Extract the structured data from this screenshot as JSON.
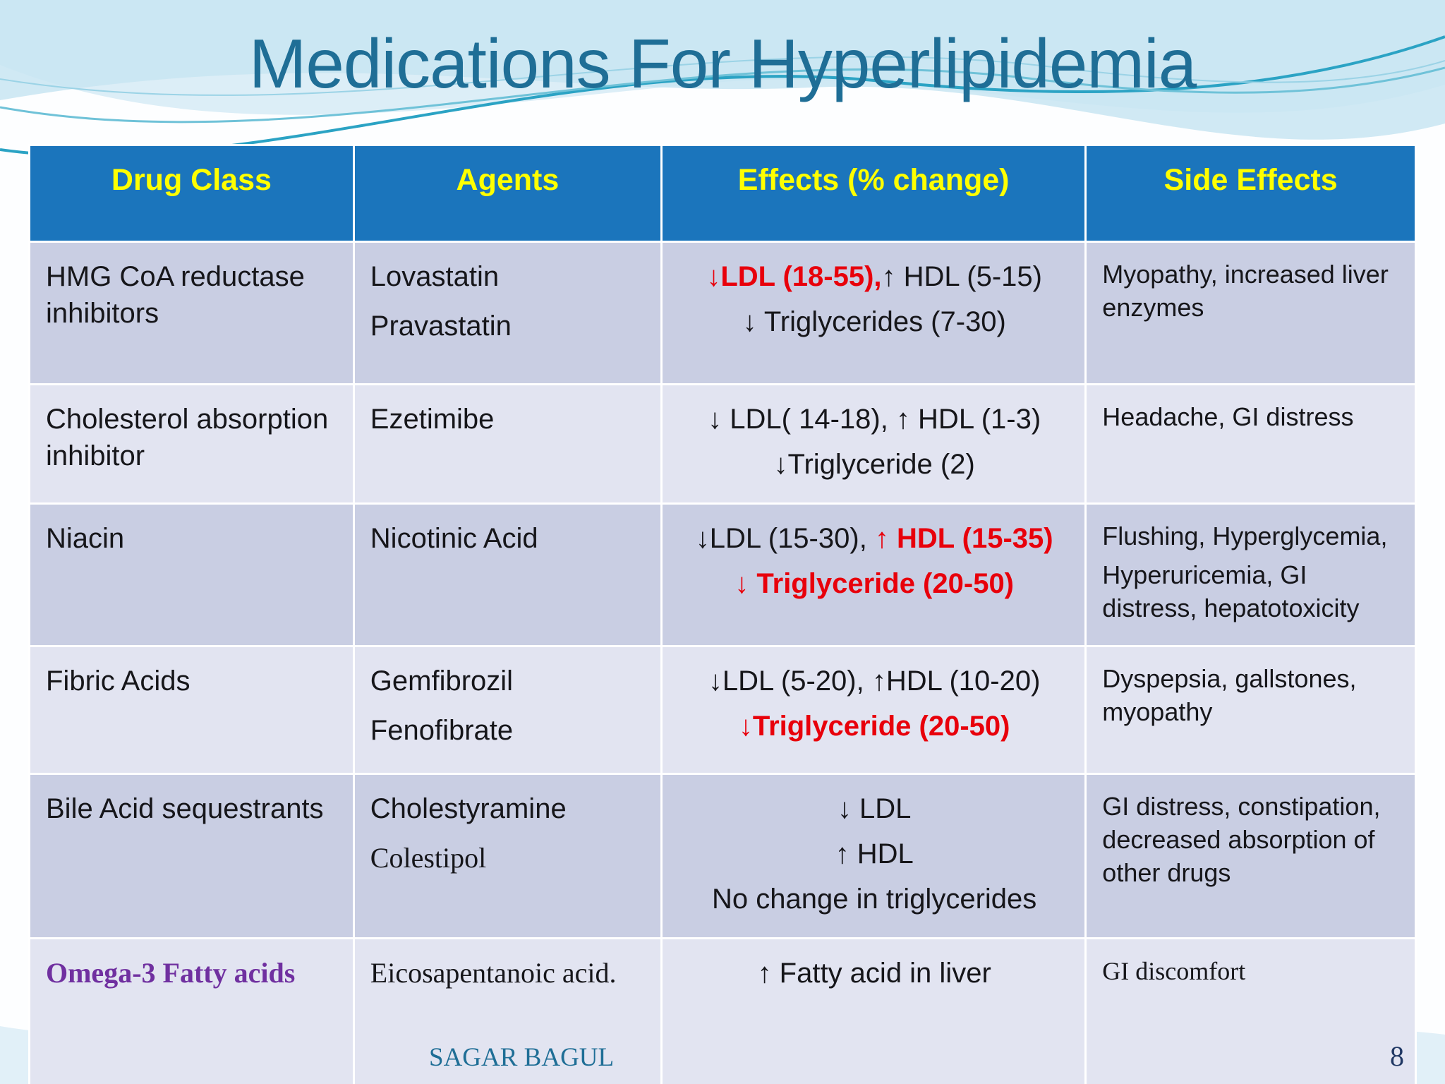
{
  "title": "Medications For Hyperlipidemia",
  "footer": {
    "author": "SAGAR BAGUL",
    "page": "8"
  },
  "colors": {
    "header_bg": "#1B75BC",
    "header_text": "#FFFF00",
    "row_dark": "#C9CEE3",
    "row_light": "#E2E4F1",
    "red_highlight": "#E8000B",
    "purple_highlight": "#7030A0",
    "title_text": "#1F6E96",
    "footer_text": "#1F6E96",
    "wave_accent": "#2BA3C4"
  },
  "table": {
    "headers": [
      "Drug Class",
      "Agents",
      "Effects (% change)",
      "Side Effects"
    ],
    "rows": [
      {
        "drug_class": [
          {
            "segments": [
              {
                "text": "HMG CoA reductase inhibitors"
              }
            ]
          }
        ],
        "agents": [
          {
            "segments": [
              {
                "text": "Lovastatin"
              }
            ]
          },
          {
            "segments": [
              {
                "text": "Pravastatin"
              }
            ]
          }
        ],
        "effects": [
          {
            "segments": [
              {
                "text": "↓LDL (18-55),",
                "style": "red-bold"
              },
              {
                "text": "↑ HDL (5-15)"
              }
            ]
          },
          {
            "segments": [
              {
                "text": "↓ Triglycerides (7-30)"
              }
            ]
          }
        ],
        "side_effects": [
          {
            "segments": [
              {
                "text": "Myopathy, increased liver enzymes"
              }
            ]
          }
        ]
      },
      {
        "drug_class": [
          {
            "segments": [
              {
                "text": "Cholesterol absorption inhibitor"
              }
            ]
          }
        ],
        "agents": [
          {
            "segments": [
              {
                "text": "Ezetimibe"
              }
            ]
          }
        ],
        "effects": [
          {
            "segments": [
              {
                "text": "↓ LDL( 14-18), ↑ HDL (1-3)"
              }
            ]
          },
          {
            "segments": [
              {
                "text": "↓Triglyceride (2)"
              }
            ]
          }
        ],
        "side_effects": [
          {
            "segments": [
              {
                "text": "Headache, GI distress"
              }
            ]
          }
        ]
      },
      {
        "drug_class": [
          {
            "segments": [
              {
                "text": "Niacin"
              }
            ]
          }
        ],
        "agents": [
          {
            "segments": [
              {
                "text": "Nicotinic Acid"
              }
            ]
          }
        ],
        "effects": [
          {
            "segments": [
              {
                "text": "↓LDL (15-30), "
              },
              {
                "text": "↑ HDL (15-35)",
                "style": "red-bold"
              }
            ]
          },
          {
            "segments": [
              {
                "text": "↓ Triglyceride (20-50)",
                "style": "red-bold"
              }
            ]
          }
        ],
        "side_effects": [
          {
            "segments": [
              {
                "text": "Flushing, Hyperglycemia,"
              }
            ]
          },
          {
            "segments": [
              {
                "text": "Hyperuricemia, GI distress, hepatotoxicity"
              }
            ]
          }
        ]
      },
      {
        "drug_class": [
          {
            "segments": [
              {
                "text": "Fibric Acids"
              }
            ]
          }
        ],
        "agents": [
          {
            "segments": [
              {
                "text": "Gemfibrozil"
              }
            ]
          },
          {
            "segments": [
              {
                "text": "Fenofibrate"
              }
            ]
          }
        ],
        "effects": [
          {
            "segments": [
              {
                "text": "↓LDL (5-20), ↑HDL (10-20)"
              }
            ]
          },
          {
            "segments": [
              {
                "text": "↓Triglyceride (20-50)",
                "style": "red-bold"
              }
            ]
          }
        ],
        "side_effects": [
          {
            "segments": [
              {
                "text": "Dyspepsia, gallstones, myopathy"
              }
            ]
          }
        ]
      },
      {
        "drug_class": [
          {
            "segments": [
              {
                "text": "Bile Acid sequestrants"
              }
            ]
          }
        ],
        "agents": [
          {
            "segments": [
              {
                "text": "Cholestyramine"
              }
            ]
          },
          {
            "segments": [
              {
                "text": "Colestipol",
                "style": "serif"
              }
            ]
          }
        ],
        "effects": [
          {
            "segments": [
              {
                "text": "↓ LDL"
              }
            ]
          },
          {
            "segments": [
              {
                "text": "↑ HDL"
              }
            ]
          },
          {
            "segments": [
              {
                "text": "No change in triglycerides"
              }
            ]
          }
        ],
        "side_effects": [
          {
            "segments": [
              {
                "text": "GI distress, constipation, decreased absorption of other drugs"
              }
            ]
          }
        ]
      },
      {
        "drug_class": [
          {
            "segments": [
              {
                "text": "Omega-3  Fatty acids",
                "style": "purple-serif-bold"
              }
            ]
          }
        ],
        "agents": [
          {
            "segments": [
              {
                "text": "Eicosapentanoic acid.",
                "style": "serif"
              }
            ]
          }
        ],
        "effects": [
          {
            "segments": [
              {
                "text": "↑ Fatty acid in liver"
              }
            ]
          }
        ],
        "side_effects": [
          {
            "segments": [
              {
                "text": "GI discomfort",
                "style": "serif"
              }
            ]
          }
        ]
      }
    ]
  }
}
